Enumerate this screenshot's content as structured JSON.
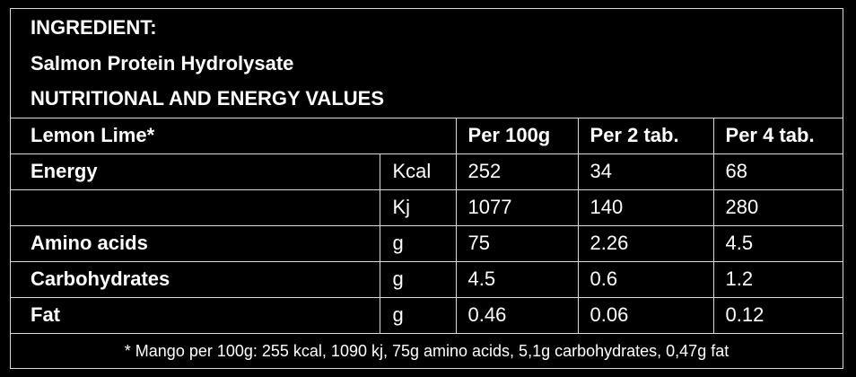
{
  "header": {
    "line1": "INGREDIENT:",
    "line2": "Salmon Protein Hydrolysate",
    "line3": "NUTRITIONAL AND ENERGY VALUES"
  },
  "table": {
    "columns": {
      "flavor": "Lemon Lime*",
      "unit": "",
      "per_100g": "Per 100g",
      "per_2_tab": "Per 2 tab.",
      "per_4_tab": "Per 4 tab."
    },
    "rows": [
      {
        "name": "Energy",
        "unit": "Kcal",
        "per_100g": "252",
        "per_2_tab": "34",
        "per_4_tab": "68"
      },
      {
        "name": "",
        "unit": "Kj",
        "per_100g": "1077",
        "per_2_tab": "140",
        "per_4_tab": "280"
      },
      {
        "name": "Amino acids",
        "unit": "g",
        "per_100g": "75",
        "per_2_tab": "2.26",
        "per_4_tab": "4.5"
      },
      {
        "name": "Carbohydrates",
        "unit": "g",
        "per_100g": "4.5",
        "per_2_tab": "0.6",
        "per_4_tab": "1.2"
      },
      {
        "name": "Fat",
        "unit": "g",
        "per_100g": "0.46",
        "per_2_tab": "0.06",
        "per_4_tab": "0.12"
      }
    ]
  },
  "footnote": "* Mango per 100g: 255 kcal, 1090 kj, 75g amino acids, 5,1g carbohydrates, 0,47g fat",
  "colors": {
    "background": "#000000",
    "text": "#ffffff",
    "border": "#d9d9d9"
  }
}
